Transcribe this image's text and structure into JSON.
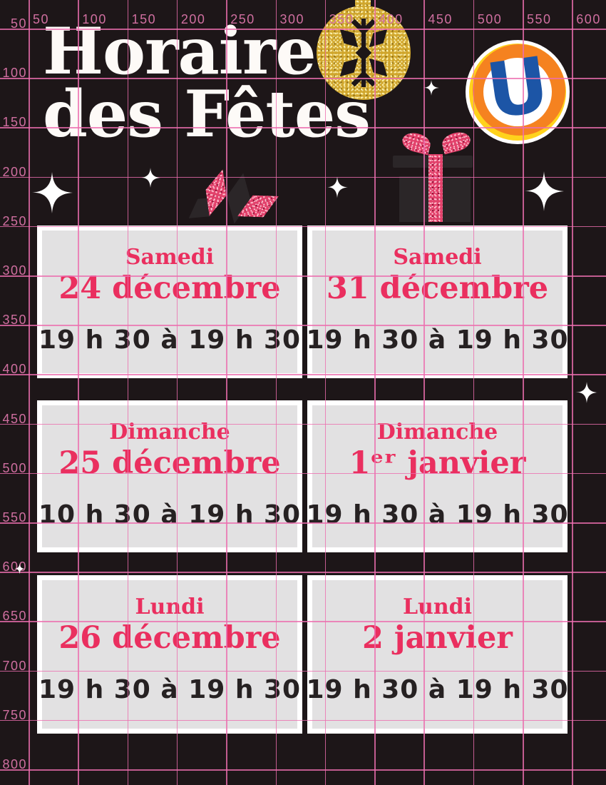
{
  "poster": {
    "title_line1": "Horaire",
    "title_line2": "des Fêtes"
  },
  "brand": {
    "logo_letter": "U"
  },
  "schedule_cards": [
    {
      "day": "Samedi",
      "date": "24 décembre",
      "hours": "19 h 30 à 19 h 30"
    },
    {
      "day": "Samedi",
      "date": "31 décembre",
      "hours": "19 h 30 à 19 h 30"
    },
    {
      "day": "Dimanche",
      "date": "25 décembre",
      "hours": "10 h 30 à 19 h 30"
    },
    {
      "day": "Dimanche",
      "date": "1ᵉʳ janvier",
      "hours": "19 h 30 à 19 h 30"
    },
    {
      "day": "Lundi",
      "date": "26 décembre",
      "hours": "19 h 30 à 19 h 30"
    },
    {
      "day": "Lundi",
      "date": "2 janvier",
      "hours": "19 h 30 à 19 h 30"
    }
  ],
  "grid_overlay": {
    "column_labels": [
      "50",
      "100",
      "150",
      "200",
      "250",
      "300",
      "350",
      "400",
      "450",
      "500",
      "550",
      "600"
    ],
    "row_labels": [
      "50",
      "100",
      "150",
      "200",
      "250",
      "300",
      "350",
      "400",
      "450",
      "500",
      "550",
      "600",
      "650",
      "700",
      "750",
      "800"
    ]
  },
  "colors": {
    "background": "#1d1618",
    "accent_pink": "#ea2f5f",
    "card_bg": "#e2e1e2",
    "card_border": "#ffffff",
    "grid_pink": "#ec6eaf",
    "grid_label_pink": "#d06fa0",
    "hours_text": "#262122",
    "title_white": "#fdfaf7",
    "logo_blue": "#1c55a6",
    "logo_orange": "#f58220",
    "logo_yellow": "#ffd21c",
    "glitter_gold": "#d0a62c",
    "glitter_pink": "#e2416b",
    "dark_gift_gray": "#2b2628"
  }
}
